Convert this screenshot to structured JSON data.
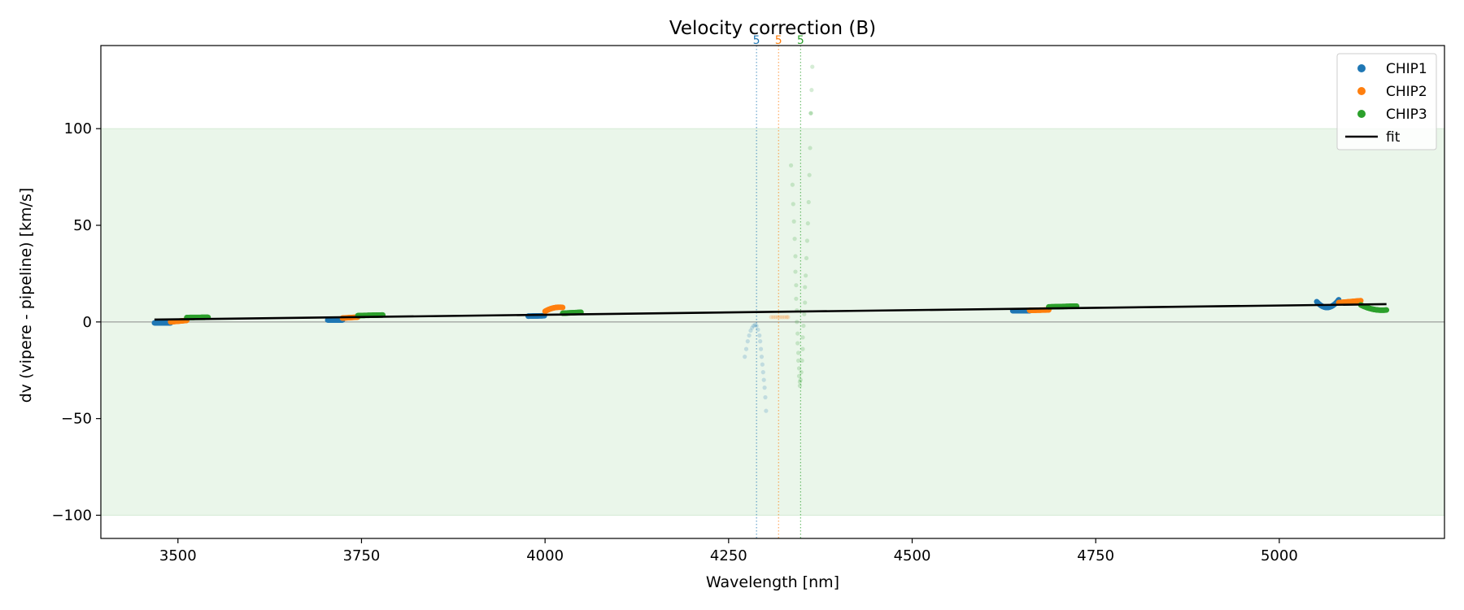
{
  "chart_data": {
    "type": "scatter",
    "title": "Velocity correction (B)",
    "xlabel": "Wavelength [nm]",
    "ylabel": "dv (vipere - pipeline) [km/s]",
    "xlim": [
      3395,
      5225
    ],
    "ylim": [
      -112,
      143
    ],
    "xticks": [
      3500,
      3750,
      4000,
      4250,
      4500,
      4750,
      5000
    ],
    "yticks": [
      -100,
      -50,
      0,
      50,
      100
    ],
    "xtick_labels": [
      "3500",
      "3750",
      "4000",
      "4250",
      "4500",
      "4750",
      "5000"
    ],
    "ytick_labels": [
      "−100",
      "−50",
      "0",
      "50",
      "100"
    ],
    "band": [
      -100,
      100
    ],
    "band_color": "#eaf6ea",
    "zero_line": 0,
    "legend_position": "upper right",
    "colors": {
      "CHIP1": "#1f77b4",
      "CHIP2": "#ff7f0e",
      "CHIP3": "#2ca02c",
      "fit": "#000000"
    },
    "legend": [
      {
        "label": "CHIP1",
        "kind": "marker",
        "color": "#1f77b4"
      },
      {
        "label": "CHIP2",
        "kind": "marker",
        "color": "#ff7f0e"
      },
      {
        "label": "CHIP3",
        "kind": "marker",
        "color": "#2ca02c"
      },
      {
        "label": "fit",
        "kind": "line",
        "color": "#000000"
      }
    ],
    "series": [
      {
        "name": "CHIP1",
        "color": "#1f77b4",
        "segments": [
          {
            "x0": 3468,
            "x1": 3490,
            "y": [
              -0.5,
              -0.5
            ],
            "curve": 0
          },
          {
            "x0": 3704,
            "x1": 3724,
            "y": [
              1.0,
              1.0
            ],
            "curve": 0
          },
          {
            "x0": 3977,
            "x1": 3999,
            "y": [
              3.0,
              3.2
            ],
            "curve": 0
          },
          {
            "x0": 4637,
            "x1": 4660,
            "y": [
              5.8,
              5.8
            ],
            "curve": 0
          },
          {
            "x0": 5051,
            "x1": 5081,
            "y": [
              10.5,
              11.5
            ],
            "curve": -3.5
          }
        ]
      },
      {
        "name": "CHIP2",
        "color": "#ff7f0e",
        "segments": [
          {
            "x0": 3490,
            "x1": 3512,
            "y": [
              0.0,
              0.8
            ],
            "curve": 0
          },
          {
            "x0": 3724,
            "x1": 3745,
            "y": [
              2.0,
              2.5
            ],
            "curve": 0
          },
          {
            "x0": 4000,
            "x1": 4024,
            "y": [
              5.5,
              7.5
            ],
            "curve": 0.8
          },
          {
            "x0": 4660,
            "x1": 4686,
            "y": [
              6.0,
              6.2
            ],
            "curve": 0
          },
          {
            "x0": 5081,
            "x1": 5111,
            "y": [
              10.0,
              11.0
            ],
            "curve": 0
          }
        ]
      },
      {
        "name": "CHIP3",
        "color": "#2ca02c",
        "segments": [
          {
            "x0": 3512,
            "x1": 3541,
            "y": [
              2.3,
              2.4
            ],
            "curve": 0
          },
          {
            "x0": 3745,
            "x1": 3779,
            "y": [
              3.3,
              3.6
            ],
            "curve": 0
          },
          {
            "x0": 4024,
            "x1": 4049,
            "y": [
              4.5,
              5.0
            ],
            "curve": 0
          },
          {
            "x0": 4686,
            "x1": 4724,
            "y": [
              7.8,
              8.2
            ],
            "curve": 0
          },
          {
            "x0": 5111,
            "x1": 5146,
            "y": [
              8.8,
              6.2
            ],
            "curve": -1.0
          }
        ]
      }
    ],
    "faint_points": [
      {
        "name": "CHIP1",
        "color": "#1f77b4",
        "x": [
          4272,
          4274,
          4276,
          4278,
          4280,
          4282,
          4284,
          4286,
          4288,
          4290,
          4292,
          4293,
          4294,
          4295,
          4296,
          4297,
          4298,
          4299,
          4300,
          4301
        ],
        "y": [
          -18,
          -14,
          -10,
          -7,
          -4.5,
          -3,
          -2,
          -1.5,
          -2,
          -4,
          -7,
          -10,
          -14,
          -18,
          -22,
          -26,
          -30,
          -34,
          -39,
          -46
        ]
      },
      {
        "name": "CHIP2",
        "color": "#ff7f0e",
        "x": [
          4308,
          4311,
          4314,
          4317,
          4320,
          4323,
          4326,
          4329,
          4331
        ],
        "y": [
          2.5,
          2.5,
          2.5,
          2.5,
          2.5,
          2.5,
          2.5,
          2.5,
          2.5
        ]
      },
      {
        "name": "CHIP3",
        "color": "#2ca02c",
        "x": [
          4335,
          4337,
          4338,
          4339,
          4340,
          4341,
          4341,
          4342,
          4342,
          4343,
          4343,
          4344,
          4344,
          4345,
          4345,
          4346,
          4346,
          4347,
          4347,
          4348,
          4349,
          4350,
          4351,
          4351,
          4352,
          4353,
          4354,
          4354,
          4355,
          4356,
          4357,
          4358,
          4359,
          4360,
          4361,
          4362
        ],
        "y": [
          81,
          71,
          61,
          52,
          43,
          34,
          26,
          19,
          12,
          6,
          0,
          -6,
          -11,
          -16,
          -20,
          -24,
          -28,
          -31,
          -33,
          -30,
          -26,
          -20,
          -14,
          -8,
          -2,
          4,
          10,
          18,
          24,
          33,
          42,
          51,
          62,
          76,
          90,
          108
        ]
      },
      {
        "name": "CHIP3",
        "color": "#2ca02c",
        "x": [
          4362,
          4363,
          4364
        ],
        "y": [
          108,
          120,
          132
        ]
      }
    ],
    "fit": {
      "x": [
        3468,
        5146
      ],
      "y": [
        1.2,
        9.2
      ]
    },
    "vertical_markers": [
      {
        "x": 4288,
        "label": "5",
        "color": "#1f77b4"
      },
      {
        "x": 4318,
        "label": "5",
        "color": "#ff7f0e"
      },
      {
        "x": 4348,
        "label": "5",
        "color": "#2ca02c"
      }
    ]
  }
}
